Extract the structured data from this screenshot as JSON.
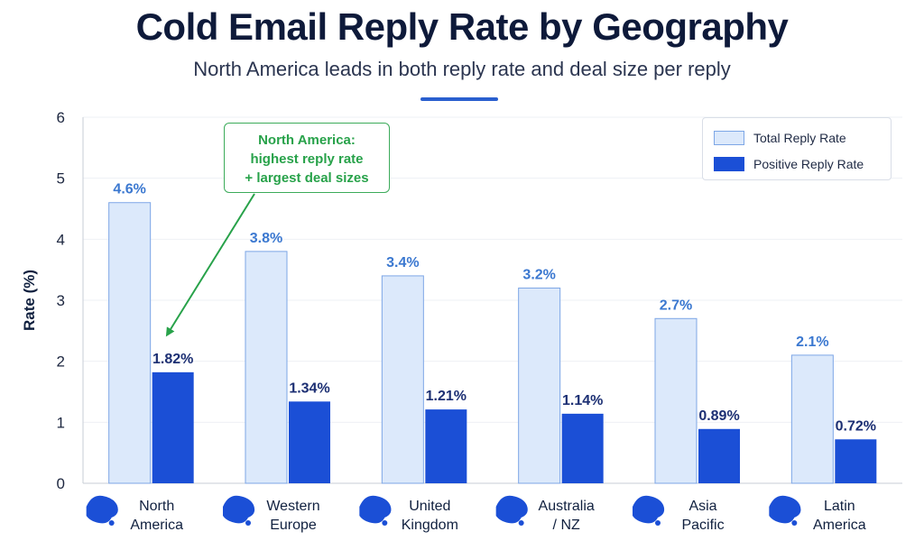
{
  "header": {
    "title": "Cold Email Reply Rate by Geography",
    "subtitle": "North America leads in both reply rate and deal size per reply"
  },
  "legend": {
    "items": [
      {
        "label": "Total Reply Rate",
        "color": "#dce9fb",
        "border": "#7da6e6"
      },
      {
        "label": "Positive Reply Rate",
        "color": "#1b4fd6",
        "border": "#1b4fd6"
      }
    ]
  },
  "callout": {
    "lines": [
      "North America:",
      "highest reply rate",
      "+ largest deal sizes"
    ],
    "color": "#28a24a"
  },
  "chart_data": {
    "type": "bar",
    "ylabel": "Rate (%)",
    "ylim": [
      0,
      6
    ],
    "yticks": [
      "0",
      "1",
      "2",
      "3",
      "4",
      "5",
      "6"
    ],
    "grid": true,
    "legend_position": "top-right",
    "categories": [
      {
        "line1": "North",
        "line2": "America",
        "icon": "north-america-map-icon"
      },
      {
        "line1": "Western",
        "line2": "Europe",
        "icon": "europe-map-icon"
      },
      {
        "line1": "United",
        "line2": "Kingdom",
        "icon": "uk-map-icon"
      },
      {
        "line1": "Australia",
        "line2": "/ NZ",
        "icon": "australia-map-icon"
      },
      {
        "line1": "Asia",
        "line2": "Pacific",
        "icon": "asia-map-icon"
      },
      {
        "line1": "Latin",
        "line2": "America",
        "icon": "south-america-map-icon"
      }
    ],
    "series": [
      {
        "name": "Total Reply Rate",
        "values": [
          4.6,
          3.8,
          3.4,
          3.2,
          2.7,
          2.1
        ],
        "labels": [
          "4.6%",
          "3.8%",
          "3.4%",
          "3.2%",
          "2.7%",
          "2.1%"
        ],
        "color": "#dce9fb",
        "label_color": "#3b78d0"
      },
      {
        "name": "Positive Reply Rate",
        "values": [
          1.82,
          1.34,
          1.21,
          1.14,
          0.89,
          0.72
        ],
        "labels": [
          "1.82%",
          "1.34%",
          "1.21%",
          "1.14%",
          "0.89%",
          "0.72%"
        ],
        "color": "#1b4fd6",
        "label_color": "#1c2f73"
      }
    ]
  }
}
